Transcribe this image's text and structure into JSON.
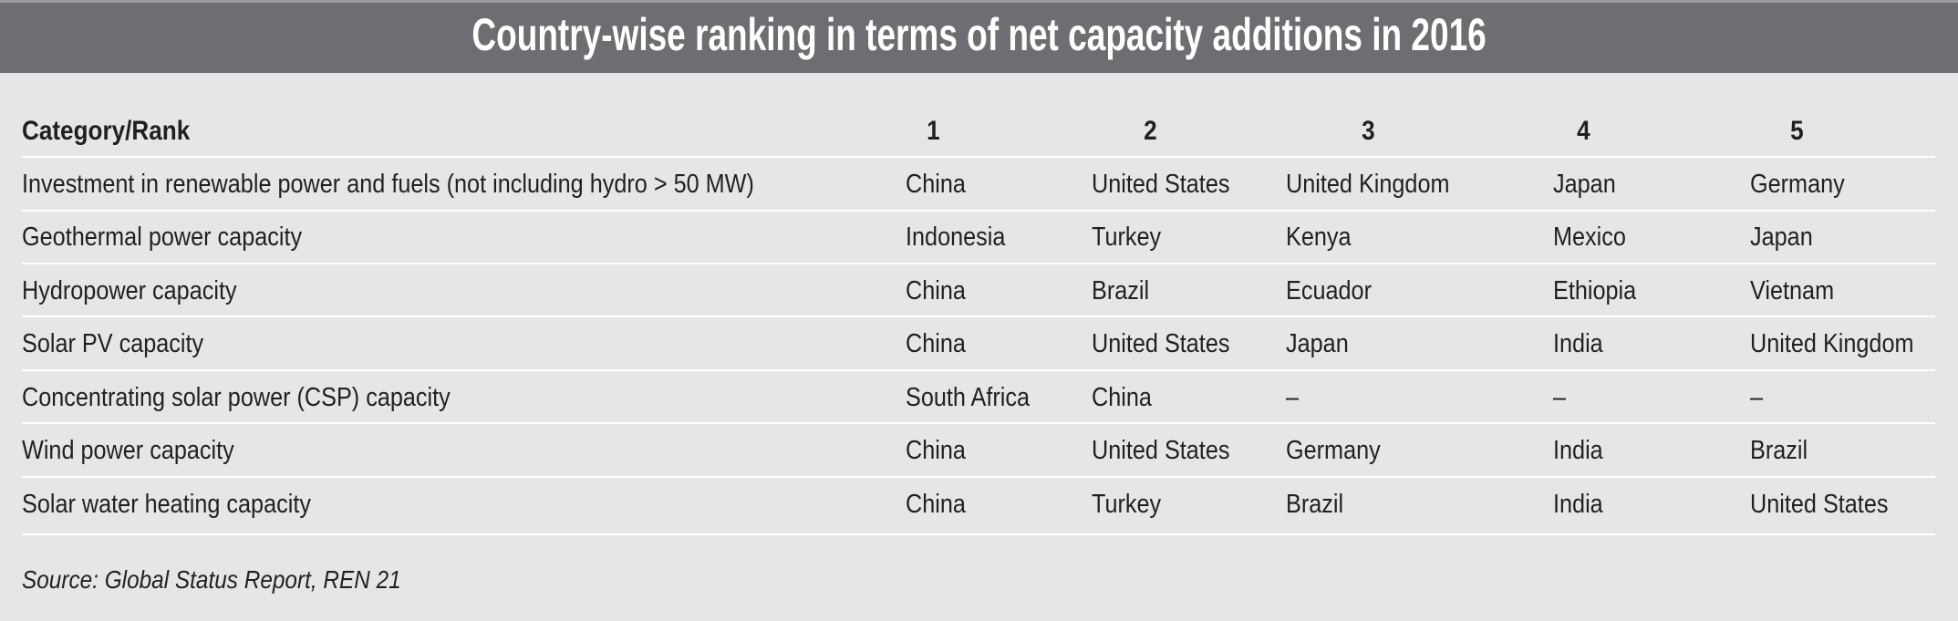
{
  "title": "Country-wise ranking in terms of net capacity additions in 2016",
  "table": {
    "headers": [
      "Category/Rank",
      "1",
      "2",
      "3",
      "4",
      "5"
    ],
    "rows": [
      [
        "Investment in renewable power and fuels (not including hydro > 50 MW)",
        "China",
        "United States",
        "United Kingdom",
        "Japan",
        "Germany"
      ],
      [
        "Geothermal power capacity",
        "Indonesia",
        "Turkey",
        "Kenya",
        "Mexico",
        "Japan"
      ],
      [
        "Hydropower capacity",
        "China",
        "Brazil",
        "Ecuador",
        "Ethiopia",
        "Vietnam"
      ],
      [
        "Solar PV capacity",
        "China",
        "United States",
        "Japan",
        "India",
        "United Kingdom"
      ],
      [
        "Concentrating solar power (CSP) capacity",
        "South Africa",
        "China",
        "–",
        "–",
        "–"
      ],
      [
        "Wind power capacity",
        "China",
        "United States",
        "Germany",
        "India",
        "Brazil"
      ],
      [
        "Solar water heating capacity",
        "China",
        "Turkey",
        "Brazil",
        "India",
        "United States"
      ]
    ]
  },
  "source": "Source: Global Status Report, REN 21",
  "colors": {
    "header_bg": "#6d6e71",
    "page_bg": "#e6e6e8",
    "text": "#231f20"
  }
}
